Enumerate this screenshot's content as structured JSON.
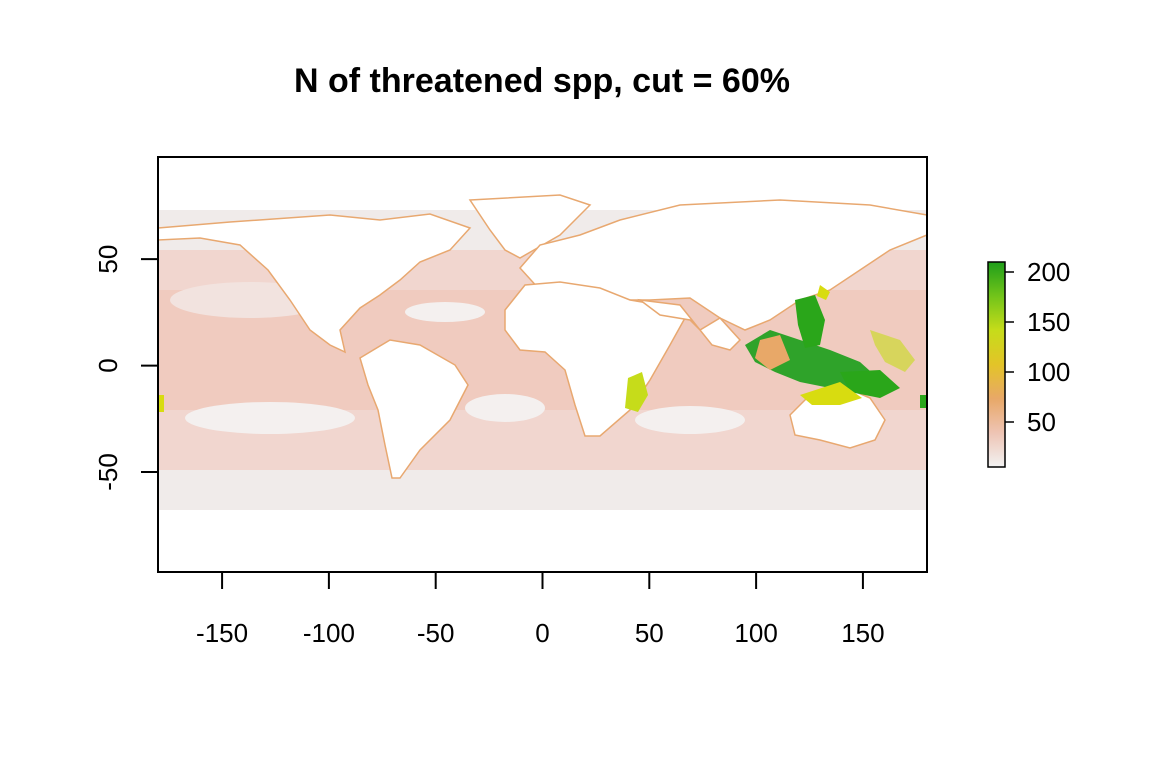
{
  "title": "N of threatened spp, cut = 60%",
  "x_axis": {
    "ticks": [
      -150,
      -100,
      -50,
      0,
      50,
      100,
      150
    ],
    "labels": [
      "-150",
      "-100",
      "-50",
      "0",
      "50",
      "100",
      "150"
    ],
    "range": [
      -180,
      180
    ]
  },
  "y_axis": {
    "ticks": [
      50,
      0,
      -50
    ],
    "labels": [
      "50",
      "0",
      "-50"
    ],
    "range": [
      -97,
      98
    ]
  },
  "legend": {
    "ticks": [
      200,
      150,
      100,
      50
    ],
    "labels": [
      "200",
      "150",
      "100",
      "50"
    ],
    "range": [
      5,
      210
    ],
    "colors": [
      "#f2f2f2",
      "#eec4b4",
      "#e8a868",
      "#e3c428",
      "#c6dc1a",
      "#72c41a",
      "#1f9e1a"
    ]
  },
  "colors": {
    "ocean_high_lat": "#f0ebea",
    "ocean_low": "#f3dcd6",
    "ocean_mid": "#eec4b6",
    "coast": "#e8a870",
    "hotspot_green": "#12a012",
    "hotspot_yellow": "#d8dc10",
    "land": "#ffffff"
  }
}
